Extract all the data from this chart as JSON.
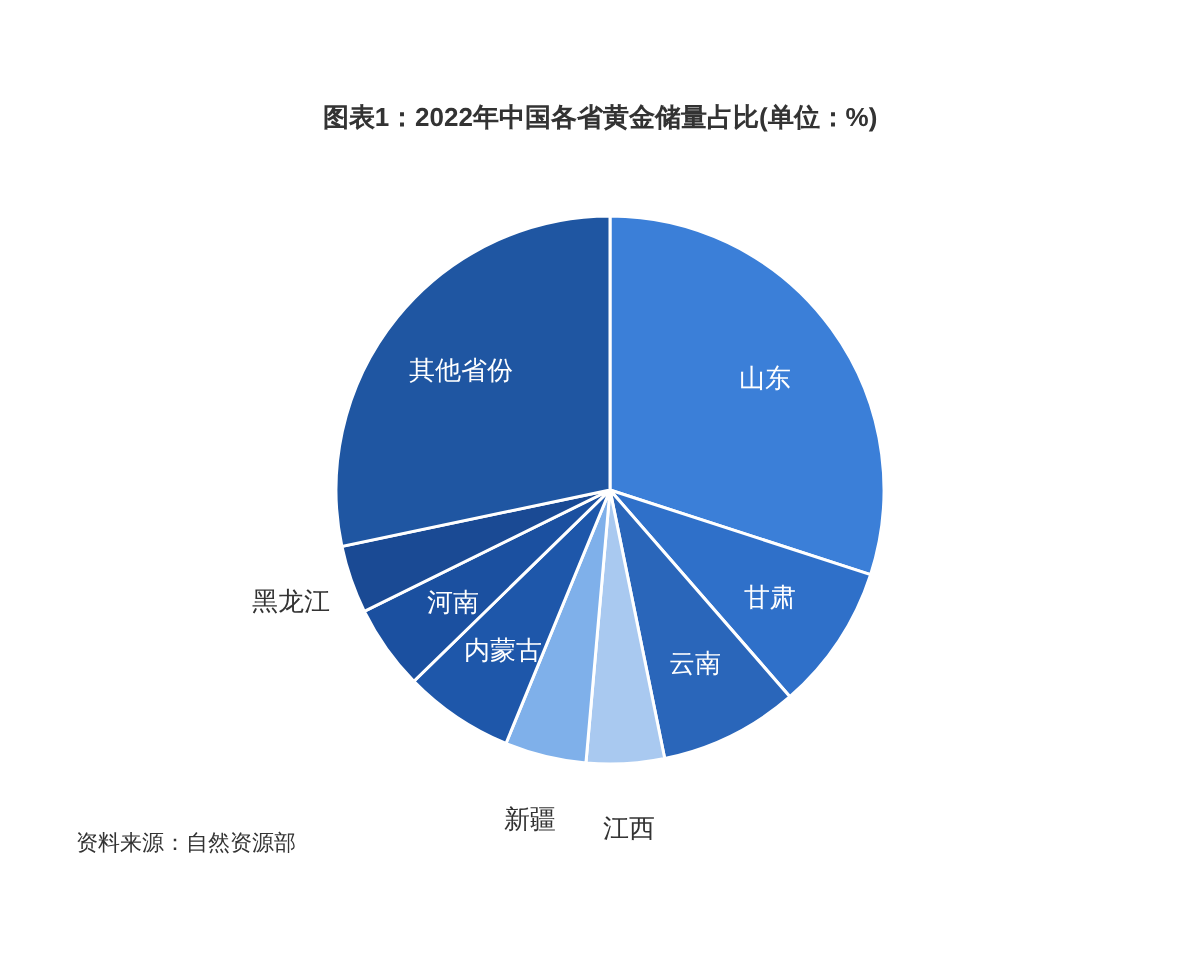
{
  "chart_data": {
    "type": "pie",
    "title": "图表1：2022年中国各省黄金储量占比(单位：%)",
    "categories": [
      "山东",
      "甘肃",
      "云南",
      "江西",
      "新疆",
      "内蒙古",
      "河南",
      "黑龙江",
      "其他省份"
    ],
    "values": [
      30,
      8.6,
      8.2,
      4.6,
      4.8,
      6.5,
      5,
      4,
      28.3
    ],
    "colors": [
      "#3b7fd8",
      "#2f70c9",
      "#2a66ba",
      "#a9c9f0",
      "#7fb0ea",
      "#1e57aa",
      "#1b50a0",
      "#1a4a94",
      "#1f56a2"
    ],
    "annotations": [
      "资料来源：自然资源部"
    ]
  }
}
